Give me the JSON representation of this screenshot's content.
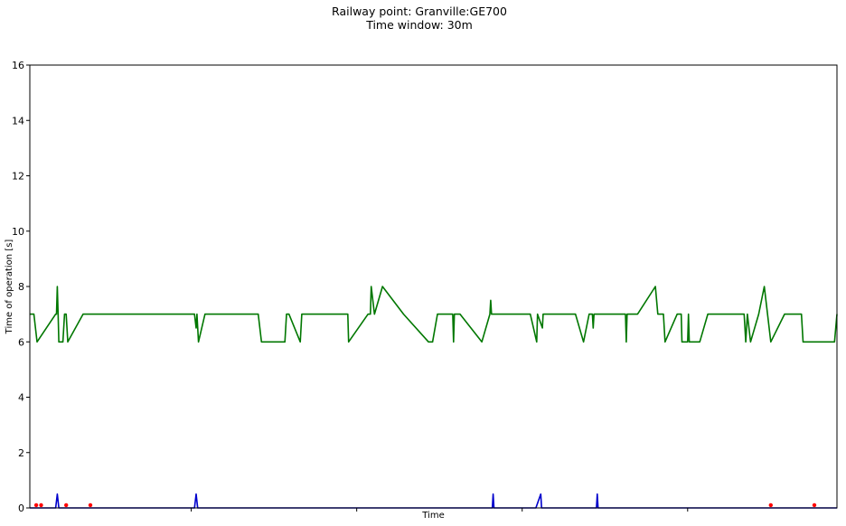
{
  "chart_data": {
    "type": "line",
    "title": "Railway point: Granville:GE700",
    "subtitle": "Time window: 30m",
    "xlabel": "Time",
    "ylabel": "Time of operation [s]",
    "ylim": [
      0,
      16
    ],
    "xlim": [
      0,
      1
    ],
    "yticks": [
      0,
      2,
      4,
      6,
      8,
      10,
      12,
      14,
      16
    ],
    "xticks_positions": [
      0.2,
      0.405,
      0.61,
      0.815
    ],
    "grid": false,
    "series": [
      {
        "color": "#007700",
        "points": [
          [
            0.0,
            7
          ],
          [
            0.005,
            7
          ],
          [
            0.009,
            6
          ],
          [
            0.032,
            7
          ],
          [
            0.033,
            7
          ],
          [
            0.034,
            8
          ],
          [
            0.035,
            7
          ],
          [
            0.036,
            6
          ],
          [
            0.041,
            6
          ],
          [
            0.043,
            7
          ],
          [
            0.045,
            7
          ],
          [
            0.047,
            6
          ],
          [
            0.066,
            7
          ],
          [
            0.2,
            7
          ],
          [
            0.204,
            7
          ],
          [
            0.206,
            6.5
          ],
          [
            0.207,
            7
          ],
          [
            0.209,
            6
          ],
          [
            0.217,
            7
          ],
          [
            0.283,
            7
          ],
          [
            0.287,
            6
          ],
          [
            0.316,
            6
          ],
          [
            0.318,
            7
          ],
          [
            0.321,
            7
          ],
          [
            0.335,
            6
          ],
          [
            0.337,
            7
          ],
          [
            0.393,
            7
          ],
          [
            0.394,
            7
          ],
          [
            0.395,
            6
          ],
          [
            0.419,
            7
          ],
          [
            0.422,
            7
          ],
          [
            0.423,
            8
          ],
          [
            0.427,
            7
          ],
          [
            0.437,
            8
          ],
          [
            0.463,
            7
          ],
          [
            0.494,
            6
          ],
          [
            0.499,
            6
          ],
          [
            0.505,
            7
          ],
          [
            0.524,
            7
          ],
          [
            0.525,
            6
          ],
          [
            0.526,
            7
          ],
          [
            0.533,
            7
          ],
          [
            0.56,
            6
          ],
          [
            0.57,
            7
          ],
          [
            0.571,
            7.5
          ],
          [
            0.572,
            7
          ],
          [
            0.62,
            7
          ],
          [
            0.628,
            6
          ],
          [
            0.629,
            7
          ],
          [
            0.635,
            6.5
          ],
          [
            0.636,
            7
          ],
          [
            0.676,
            7
          ],
          [
            0.686,
            6
          ],
          [
            0.693,
            7
          ],
          [
            0.697,
            7
          ],
          [
            0.698,
            6.5
          ],
          [
            0.699,
            7
          ],
          [
            0.738,
            7
          ],
          [
            0.739,
            6
          ],
          [
            0.74,
            7
          ],
          [
            0.753,
            7
          ],
          [
            0.775,
            8
          ],
          [
            0.778,
            7
          ],
          [
            0.785,
            7
          ],
          [
            0.787,
            6
          ],
          [
            0.802,
            7
          ],
          [
            0.807,
            7
          ],
          [
            0.808,
            6
          ],
          [
            0.815,
            6
          ],
          [
            0.816,
            7
          ],
          [
            0.817,
            6
          ],
          [
            0.83,
            6
          ],
          [
            0.84,
            7
          ],
          [
            0.884,
            7
          ],
          [
            0.885,
            7
          ],
          [
            0.887,
            6
          ],
          [
            0.889,
            7
          ],
          [
            0.893,
            6
          ],
          [
            0.903,
            7
          ],
          [
            0.91,
            8
          ],
          [
            0.918,
            6
          ],
          [
            0.935,
            7
          ],
          [
            0.956,
            7
          ],
          [
            0.958,
            6
          ],
          [
            0.961,
            6
          ],
          [
            0.997,
            6
          ],
          [
            1.0,
            7
          ]
        ]
      },
      {
        "color": "#0000cc",
        "points": [
          [
            0.0,
            0
          ],
          [
            0.032,
            0
          ],
          [
            0.034,
            0.5
          ],
          [
            0.036,
            0
          ],
          [
            0.204,
            0
          ],
          [
            0.206,
            0.5
          ],
          [
            0.208,
            0
          ],
          [
            0.573,
            0
          ],
          [
            0.574,
            0.5
          ],
          [
            0.575,
            0
          ],
          [
            0.627,
            0
          ],
          [
            0.633,
            0.5
          ],
          [
            0.634,
            0
          ],
          [
            0.702,
            0
          ],
          [
            0.703,
            0.5
          ],
          [
            0.704,
            0
          ],
          [
            1.0,
            0
          ]
        ]
      }
    ],
    "markers": {
      "color": "#ff0000",
      "points": [
        [
          0.008,
          0.1
        ],
        [
          0.014,
          0.1
        ],
        [
          0.045,
          0.1
        ],
        [
          0.075,
          0.1
        ],
        [
          0.918,
          0.1
        ],
        [
          0.972,
          0.1
        ]
      ]
    }
  }
}
